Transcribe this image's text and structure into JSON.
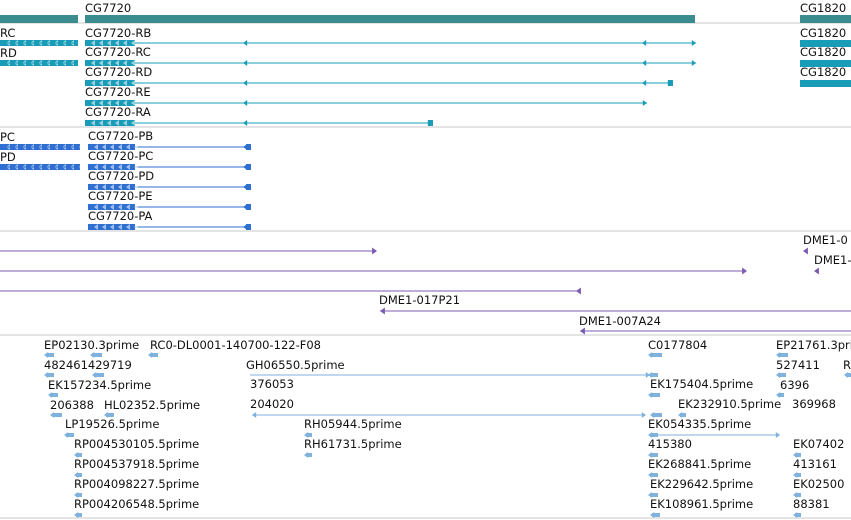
{
  "colors": {
    "gene": "#3a8c8e",
    "transcript": "#189cb8",
    "protein": "#2f6fd2",
    "clone": "#7b5bb1",
    "est": "#7fb2dd",
    "divider": "#c8c8c8"
  },
  "tracks": {
    "genes": {
      "items": [
        {
          "label": "CG7720"
        },
        {
          "label": "CG1820"
        }
      ]
    },
    "transcripts": {
      "items": [
        {
          "label": "RC"
        },
        {
          "label": "RD"
        },
        {
          "label": "CG7720-RB"
        },
        {
          "label": "CG7720-RC"
        },
        {
          "label": "CG7720-RD"
        },
        {
          "label": "CG7720-RE"
        },
        {
          "label": "CG7720-RA"
        },
        {
          "label": "CG1820"
        },
        {
          "label": "CG1820"
        },
        {
          "label": "CG1820"
        }
      ]
    },
    "proteins": {
      "items": [
        {
          "label": "PC"
        },
        {
          "label": "PD"
        },
        {
          "label": "CG7720-PB"
        },
        {
          "label": "CG7720-PC"
        },
        {
          "label": "CG7720-PD"
        },
        {
          "label": "CG7720-PE"
        },
        {
          "label": "CG7720-PA"
        }
      ]
    },
    "clones": {
      "items": [
        {
          "label": "DME1-0"
        },
        {
          "label": "DME1-"
        },
        {
          "label": "DME1-017P21"
        },
        {
          "label": "DME1-007A24"
        }
      ]
    },
    "ests": {
      "items": [
        {
          "label": "EP02130.3prime"
        },
        {
          "label": "RC0-DL0001-140700-122-F08"
        },
        {
          "label": "482461429719"
        },
        {
          "label": "EK157234.5prime"
        },
        {
          "label": "206388"
        },
        {
          "label": "HL02352.5prime"
        },
        {
          "label": "LP19526.5prime"
        },
        {
          "label": "RP004530105.5prime"
        },
        {
          "label": "RP004537918.5prime"
        },
        {
          "label": "RP004098227.5prime"
        },
        {
          "label": "RP004206548.5prime"
        },
        {
          "label": "GH06550.5prime"
        },
        {
          "label": "376053"
        },
        {
          "label": "204020"
        },
        {
          "label": "RH05944.5prime"
        },
        {
          "label": "RH61731.5prime"
        },
        {
          "label": "C0177804"
        },
        {
          "label": "EK175404.5prime"
        },
        {
          "label": "EK232910.5prime"
        },
        {
          "label": "EK054335.5prime"
        },
        {
          "label": "415380"
        },
        {
          "label": "EK268841.5prime"
        },
        {
          "label": "EK229642.5prime"
        },
        {
          "label": "EK108961.5prime"
        },
        {
          "label": "EP21761.3prime"
        },
        {
          "label": "527411"
        },
        {
          "label": "R"
        },
        {
          "label": "6396"
        },
        {
          "label": "369968"
        },
        {
          "label": "EK07402"
        },
        {
          "label": "413161"
        },
        {
          "label": "EK02500"
        },
        {
          "label": "88381"
        }
      ]
    }
  }
}
